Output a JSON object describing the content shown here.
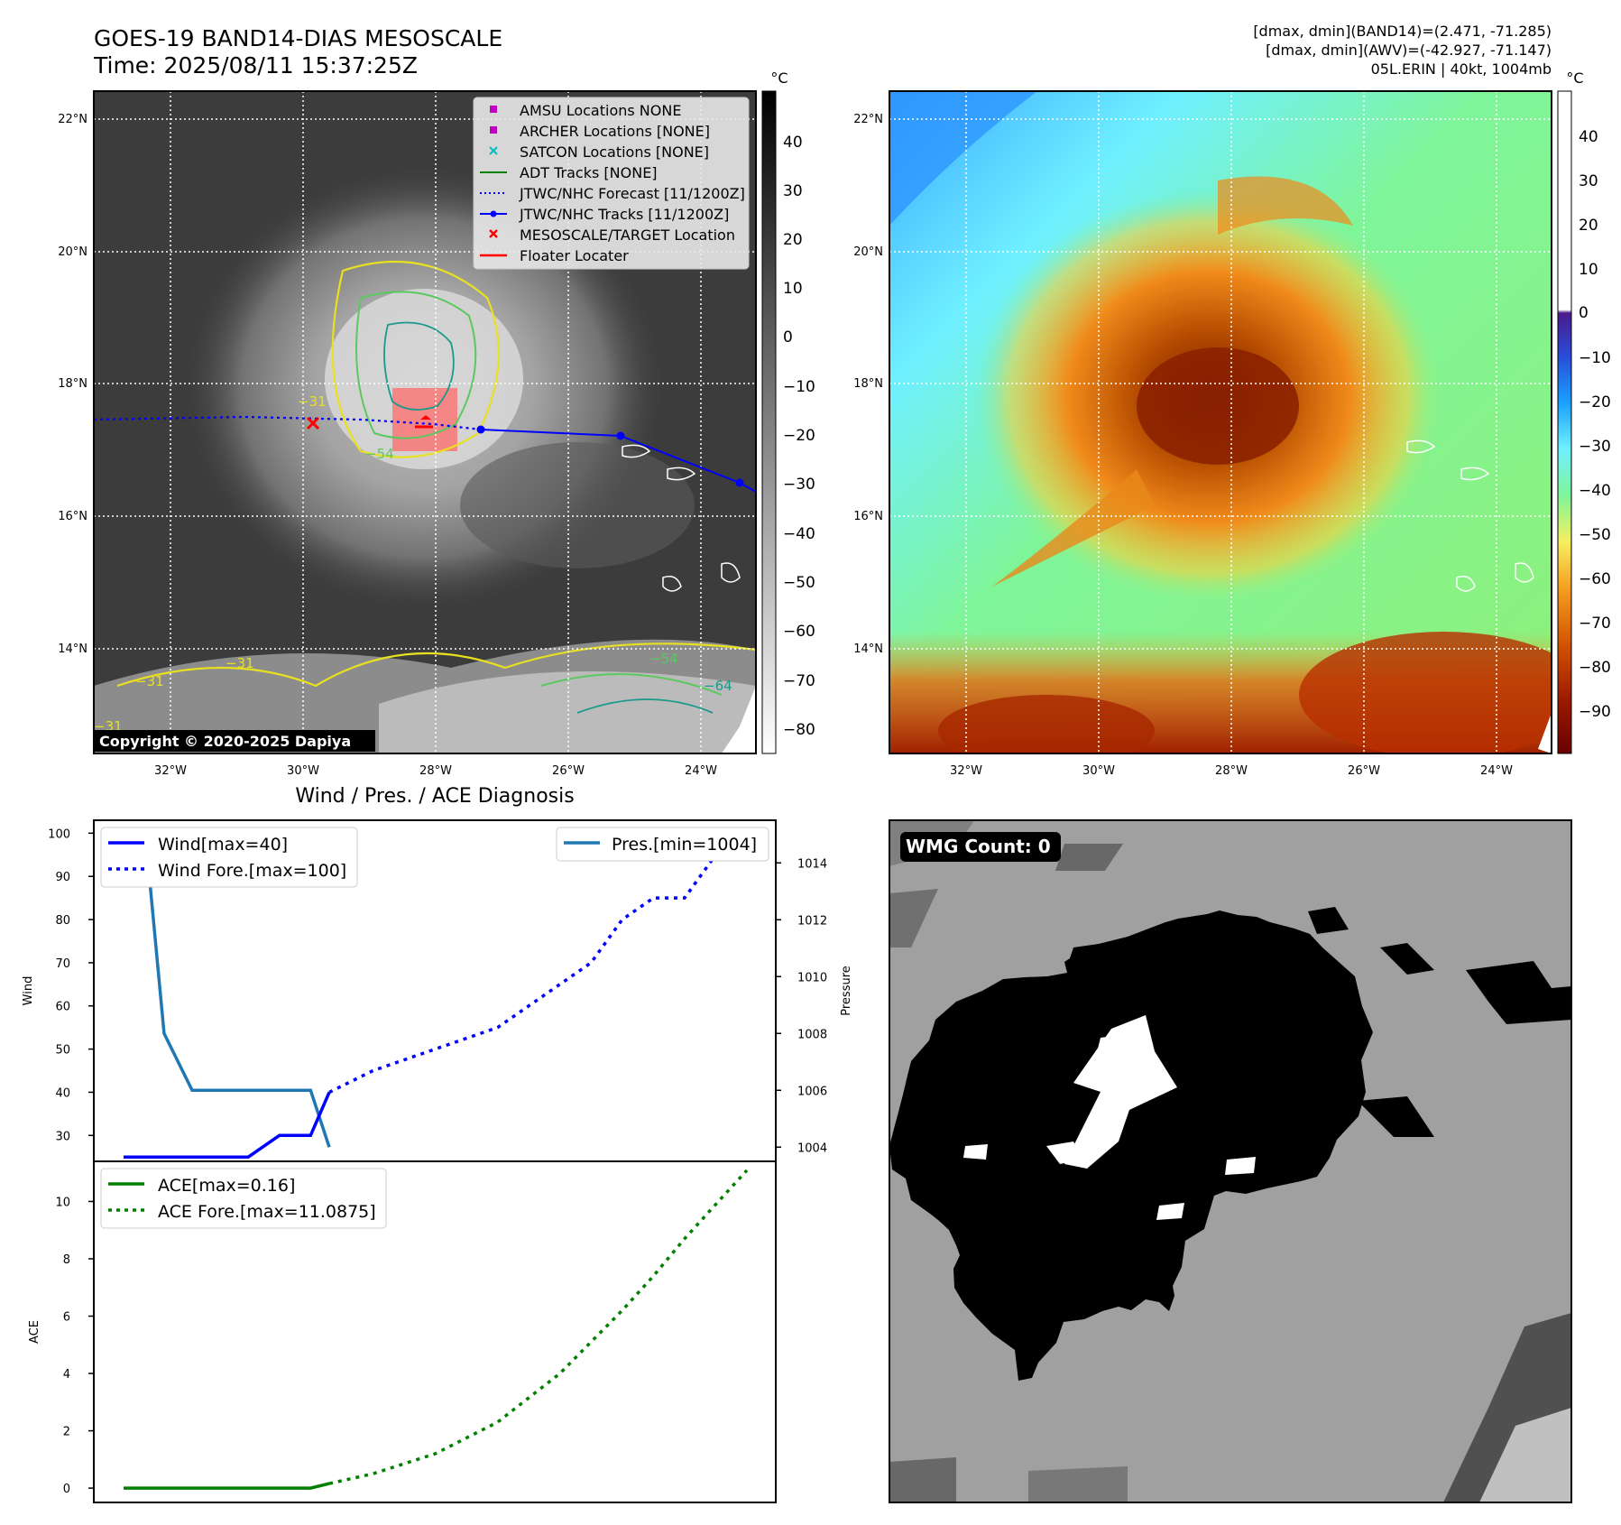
{
  "header": {
    "title_line1": "GOES-19 BAND14-DIAS MESOSCALE",
    "title_line2": "Time: 2025/08/11 15:37:25Z",
    "info_line1": "[dmax, dmin](BAND14)=(2.471, -71.285)",
    "info_line2": "[dmax, dmin](AWV)=(-42.927, -71.147)",
    "info_line3": "05L.ERIN | 40kt, 1004mb"
  },
  "map_axes": {
    "lon_ticks": [
      "32°W",
      "30°W",
      "28°W",
      "26°W",
      "24°W"
    ],
    "lat_ticks": [
      "22°N",
      "20°N",
      "18°N",
      "16°N",
      "14°N"
    ]
  },
  "ir_panel": {
    "colorbar_unit": "°C",
    "colorbar_ticks": [
      "40",
      "30",
      "20",
      "10",
      "0",
      "−10",
      "−20",
      "−30",
      "−40",
      "−50",
      "−60",
      "−70",
      "−80"
    ],
    "copyright": "Copyright © 2020-2025 Dapiya",
    "contour_labels": [
      "−31",
      "−54",
      "−31",
      "−31",
      "−54",
      "−64",
      "−31"
    ],
    "legend": [
      {
        "label": "AMSU Locations NONE",
        "color": "#bf00bf",
        "marker": "square"
      },
      {
        "label": "ARCHER Locations [NONE]",
        "color": "#bf00bf",
        "marker": "square"
      },
      {
        "label": "SATCON Locations [NONE]",
        "color": "#00bfbf",
        "marker": "x"
      },
      {
        "label": "ADT Tracks [NONE]",
        "color": "#008000",
        "marker": "line"
      },
      {
        "label": "JTWC/NHC Forecast [11/1200Z]",
        "color": "#0000ff",
        "marker": "dotted"
      },
      {
        "label": "JTWC/NHC Tracks [11/1200Z]",
        "color": "#0000ff",
        "marker": "line-dot"
      },
      {
        "label": "MESOSCALE/TARGET Location",
        "color": "#ff0000",
        "marker": "x"
      },
      {
        "label": "Floater Locater",
        "color": "#ff0000",
        "marker": "line"
      }
    ]
  },
  "wv_panel": {
    "colorbar_unit": "°C",
    "colorbar_ticks": [
      "40",
      "30",
      "20",
      "10",
      "0",
      "−10",
      "−20",
      "−30",
      "−40",
      "−50",
      "−60",
      "−70",
      "−80",
      "−90"
    ]
  },
  "diag_panel": {
    "title": "Wind / Pres. / ACE Diagnosis",
    "wind_ylabel": "Wind",
    "pres_ylabel": "Pressure",
    "ace_ylabel": "ACE",
    "legend_wind": "Wind[max=40]",
    "legend_wind_fore": "Wind Fore.[max=100]",
    "legend_pres": "Pres.[min=1004]",
    "legend_ace": "ACE[max=0.16]",
    "legend_ace_fore": "ACE Fore.[max=11.0875]"
  },
  "wmg_panel": {
    "label": "WMG Count: 0"
  },
  "chart_data": [
    {
      "type": "line",
      "title": "Wind / Pres. / ACE Diagnosis",
      "ylabel": "Wind",
      "ylim": [
        24,
        103
      ],
      "yticks": [
        30,
        40,
        50,
        60,
        70,
        80,
        90,
        100
      ],
      "series": [
        {
          "name": "Wind[max=40]",
          "color": "#0000ff",
          "style": "solid",
          "x": [
            0,
            1,
            2,
            3,
            4,
            5,
            6,
            6.6
          ],
          "values": [
            25,
            25,
            25,
            25,
            25,
            30,
            30,
            40
          ]
        },
        {
          "name": "Wind Fore.[max=100]",
          "color": "#0000ff",
          "style": "dotted",
          "x": [
            6.6,
            8,
            10,
            12,
            13,
            14,
            15,
            16,
            17,
            18,
            19,
            20
          ],
          "values": [
            40,
            45,
            50,
            55,
            60,
            65,
            70,
            80,
            85,
            85,
            95,
            100
          ]
        }
      ]
    },
    {
      "type": "line",
      "ylabel": "Pressure",
      "ylim": [
        1003.5,
        1015.5
      ],
      "yticks": [
        1004,
        1006,
        1008,
        1010,
        1012,
        1014
      ],
      "series": [
        {
          "name": "Pres.[min=1004]",
          "color": "#1f77b4",
          "style": "solid",
          "x": [
            0,
            0.7,
            1.3,
            2.2,
            3,
            4,
            5,
            6,
            6.6
          ],
          "values": [
            1015,
            1015,
            1008,
            1006,
            1006,
            1006,
            1006,
            1006,
            1004
          ]
        }
      ]
    },
    {
      "type": "line",
      "ylabel": "ACE",
      "ylim": [
        -0.5,
        11.4
      ],
      "yticks": [
        0,
        2,
        4,
        6,
        8,
        10
      ],
      "series": [
        {
          "name": "ACE[max=0.16]",
          "color": "#008000",
          "style": "solid",
          "x": [
            0,
            6,
            6.6
          ],
          "values": [
            0,
            0,
            0.16
          ]
        },
        {
          "name": "ACE Fore.[max=11.0875]",
          "color": "#008000",
          "style": "dotted",
          "x": [
            6.6,
            8,
            10,
            12,
            14,
            16,
            17,
            18,
            19,
            20
          ],
          "values": [
            0.16,
            0.5,
            1.2,
            2.3,
            4.0,
            6.2,
            7.4,
            8.7,
            9.9,
            11.0875
          ]
        }
      ]
    }
  ]
}
